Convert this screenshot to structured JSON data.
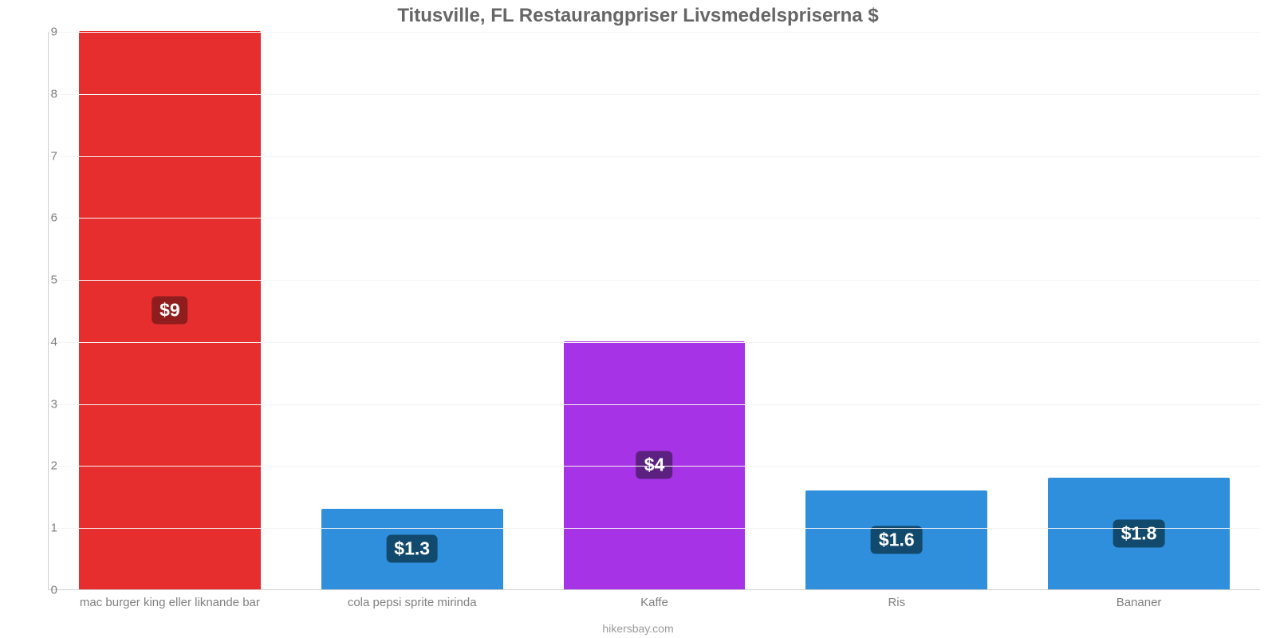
{
  "chart": {
    "type": "bar",
    "title": "Titusville, FL Restaurangpriser Livsmedelspriserna $",
    "title_color": "#666666",
    "title_fontsize": 24,
    "background_color": "#ffffff",
    "grid_color": "#f7f3f3",
    "axis_line_color": "#cfcfcf",
    "tick_font_color": "#808080",
    "tick_fontsize": 15,
    "credit": "hikersbay.com",
    "credit_color": "#9a9a9a",
    "y": {
      "min": 0,
      "max": 9,
      "ticks": [
        0,
        1,
        2,
        3,
        4,
        5,
        6,
        7,
        8,
        9
      ]
    },
    "bar_width_pct": 75,
    "value_label_fontsize": 23,
    "categories": [
      {
        "label": "mac burger king eller liknande bar",
        "value": 9.0,
        "value_label": "$9",
        "bar_color": "#e62e2e",
        "badge_bg": "#8f1d1d"
      },
      {
        "label": "cola pepsi sprite mirinda",
        "value": 1.3,
        "value_label": "$1.3",
        "bar_color": "#2f8fdc",
        "badge_bg": "#124a6e"
      },
      {
        "label": "Kaffe",
        "value": 4.0,
        "value_label": "$4",
        "bar_color": "#a733e6",
        "badge_bg": "#5c2080"
      },
      {
        "label": "Ris",
        "value": 1.6,
        "value_label": "$1.6",
        "bar_color": "#2f8fdc",
        "badge_bg": "#124a6e"
      },
      {
        "label": "Bananer",
        "value": 1.8,
        "value_label": "$1.8",
        "bar_color": "#2f8fdc",
        "badge_bg": "#124a6e"
      }
    ]
  }
}
